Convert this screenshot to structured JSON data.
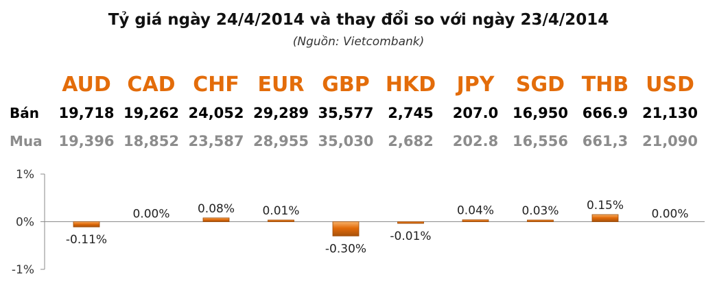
{
  "title": "Tỷ giá ngày 24/4/2014 và thay đổi so với ngày 23/4/2014",
  "subtitle": "(Nguồn: Vietcombank)",
  "table": {
    "currencies": [
      "AUD",
      "CAD",
      "CHF",
      "EUR",
      "GBP",
      "HKD",
      "JPY",
      "SGD",
      "THB",
      "USD"
    ],
    "rows": [
      {
        "label": "Bán",
        "values": [
          "19,718",
          "19,262",
          "24,052",
          "29,289",
          "35,577",
          "2,745",
          "207.0",
          "16,950",
          "666.9",
          "21,130"
        ]
      },
      {
        "label": "Mua",
        "values": [
          "19,396",
          "18,852",
          "23,587",
          "28,955",
          "35,030",
          "2,682",
          "202.8",
          "16,556",
          "661,3",
          "21,090"
        ]
      }
    ]
  },
  "colors": {
    "currency_text": "#e36c0a",
    "sell_text": "#000000",
    "buy_text": "#8c8c8c",
    "bar_fill": "#e26b0a",
    "bar_edge": "#9c4a06"
  },
  "chart_data": {
    "type": "bar",
    "categories": [
      "AUD",
      "CAD",
      "CHF",
      "EUR",
      "GBP",
      "HKD",
      "JPY",
      "SGD",
      "THB",
      "USD"
    ],
    "values": [
      -0.11,
      0.0,
      0.08,
      0.01,
      -0.3,
      -0.01,
      0.04,
      0.03,
      0.15,
      0.0
    ],
    "data_labels": [
      "-0.11%",
      "0.00%",
      "0.08%",
      "0.01%",
      "-0.30%",
      "-0.01%",
      "0.04%",
      "0.03%",
      "0.15%",
      "0.00%"
    ],
    "ylim": [
      -1,
      1
    ],
    "yticks": [
      1,
      0,
      -1
    ],
    "ytick_labels": [
      "1%",
      "0%",
      "-1%"
    ],
    "grid": false
  }
}
